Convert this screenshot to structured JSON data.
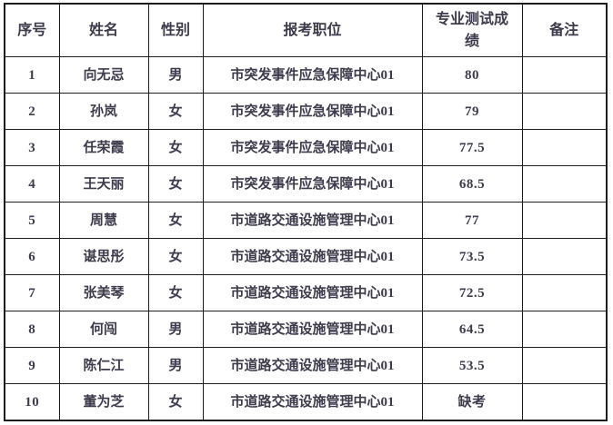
{
  "colors": {
    "text": "#3d3b4c",
    "border": "#1c1c1c",
    "background": "#ffffff"
  },
  "table": {
    "columns": [
      {
        "key": "num",
        "label": "序号"
      },
      {
        "key": "name",
        "label": "姓名"
      },
      {
        "key": "gender",
        "label": "性别"
      },
      {
        "key": "position",
        "label": "报考职位"
      },
      {
        "key": "score",
        "label": "专业测试成绩"
      },
      {
        "key": "remark",
        "label": "备注"
      }
    ],
    "rows": [
      {
        "num": "1",
        "name": "向无忌",
        "gender": "男",
        "position": "市突发事件应急保障中心01",
        "score": "80",
        "remark": ""
      },
      {
        "num": "2",
        "name": "孙岚",
        "gender": "女",
        "position": "市突发事件应急保障中心01",
        "score": "79",
        "remark": ""
      },
      {
        "num": "3",
        "name": "任荣霞",
        "gender": "女",
        "position": "市突发事件应急保障中心01",
        "score": "77.5",
        "remark": ""
      },
      {
        "num": "4",
        "name": "王天丽",
        "gender": "女",
        "position": "市突发事件应急保障中心01",
        "score": "68.5",
        "remark": ""
      },
      {
        "num": "5",
        "name": "周慧",
        "gender": "女",
        "position": "市道路交通设施管理中心01",
        "score": "77",
        "remark": ""
      },
      {
        "num": "6",
        "name": "谌思彤",
        "gender": "女",
        "position": "市道路交通设施管理中心01",
        "score": "73.5",
        "remark": ""
      },
      {
        "num": "7",
        "name": "张美琴",
        "gender": "女",
        "position": "市道路交通设施管理中心01",
        "score": "72.5",
        "remark": ""
      },
      {
        "num": "8",
        "name": "何闯",
        "gender": "男",
        "position": "市道路交通设施管理中心01",
        "score": "64.5",
        "remark": ""
      },
      {
        "num": "9",
        "name": "陈仁江",
        "gender": "男",
        "position": "市道路交通设施管理中心01",
        "score": "53.5",
        "remark": ""
      },
      {
        "num": "10",
        "name": "董为芝",
        "gender": "女",
        "position": "市道路交通设施管理中心01",
        "score": "缺考",
        "remark": ""
      }
    ]
  }
}
